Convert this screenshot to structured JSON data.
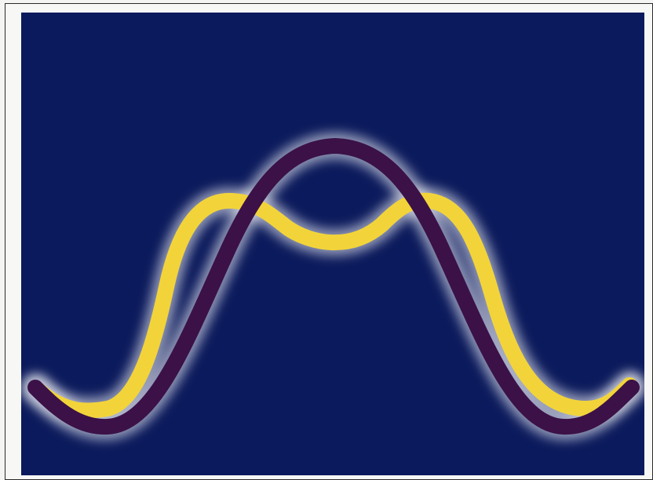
{
  "illustration": {
    "background_color": "#0b1a5c",
    "glow_color": "#ffffff",
    "curves": [
      {
        "name": "yellow-double-peak-curve",
        "color": "#f2d43a"
      },
      {
        "name": "purple-single-peak-curve",
        "color": "#3b1148"
      }
    ]
  }
}
